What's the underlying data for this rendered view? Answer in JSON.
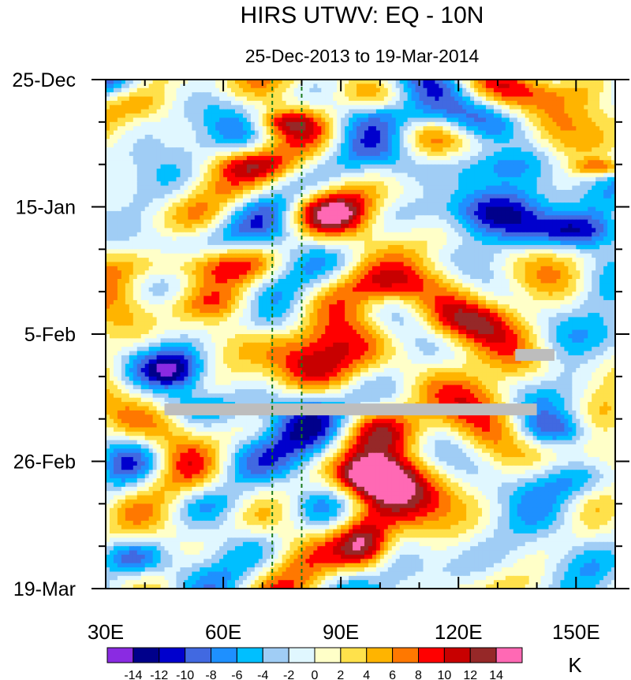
{
  "chart_data": {
    "type": "heatmap",
    "title": "HIRS UTWV: EQ - 10N",
    "subtitle": "25-Dec-2013 to 19-Mar-2014",
    "x_axis": {
      "range": [
        30,
        160
      ],
      "ticks": [
        30,
        60,
        90,
        120,
        150
      ],
      "tick_labels": [
        "30E",
        "60E",
        "90E",
        "120E",
        "150E"
      ]
    },
    "y_axis": {
      "range_days": [
        0,
        84
      ],
      "ticks": [
        0,
        21,
        42,
        63,
        84
      ],
      "tick_labels": [
        "25-Dec",
        "15-Jan",
        "5-Feb",
        "26-Feb",
        "19-Mar"
      ],
      "direction": "time increases downward"
    },
    "reference_lines_lon": [
      72.5,
      80
    ],
    "missing_data_bars": [
      {
        "lon": [
          45,
          140
        ],
        "day": 54.5
      },
      {
        "lon": [
          134.5,
          144.5
        ],
        "day": 45.5
      }
    ],
    "colorbar": {
      "unit_label": "K",
      "levels": [
        -14,
        -12,
        -10,
        -8,
        -6,
        -4,
        -2,
        0,
        2,
        4,
        6,
        8,
        10,
        12,
        14
      ],
      "tick_labels": [
        "-14",
        "-12",
        "-10",
        "-8",
        "-6",
        "-4",
        "-2",
        "0",
        "2",
        "4",
        "6",
        "8",
        "10",
        "12",
        "14"
      ],
      "colors": [
        "#8a2be2",
        "#00008b",
        "#0000cd",
        "#4169e1",
        "#1e90ff",
        "#00bfff",
        "#a0cdf5",
        "#e0f7ff",
        "#ffffc8",
        "#ffe14b",
        "#ffb400",
        "#ff7800",
        "#ff0000",
        "#c80000",
        "#962828",
        "#ff69b4"
      ]
    },
    "features": [
      {
        "lon": 88,
        "day": 46,
        "amp": 9,
        "sLon": 14,
        "sDay": 4
      },
      {
        "lon": 100,
        "day": 34,
        "amp": 10,
        "sLon": 9,
        "sDay": 2.5
      },
      {
        "lon": 98,
        "day": 65.5,
        "amp": 15,
        "sLon": 6,
        "sDay": 2.2
      },
      {
        "lon": 96,
        "day": 77,
        "amp": 15,
        "sLon": 5,
        "sDay": 3
      },
      {
        "lon": 107,
        "day": 68,
        "amp": 8,
        "sLon": 12,
        "sDay": 4
      },
      {
        "lon": 104,
        "day": 58,
        "amp": 6,
        "sLon": 10,
        "sDay": 3
      },
      {
        "lon": 122,
        "day": 40,
        "amp": 7,
        "sLon": 10,
        "sDay": 2.5
      },
      {
        "lon": 155,
        "day": 47,
        "amp": 8,
        "sLon": 6,
        "sDay": 3
      },
      {
        "lon": 50,
        "day": 31,
        "amp": 7,
        "sLon": 12,
        "sDay": 2
      },
      {
        "lon": 62,
        "day": 37,
        "amp": 5,
        "sLon": 10,
        "sDay": 2
      },
      {
        "lon": 75,
        "day": 7,
        "amp": 8,
        "sLon": 6,
        "sDay": 1.5
      },
      {
        "lon": 37,
        "day": 4,
        "amp": 6,
        "sLon": 6,
        "sDay": 2
      },
      {
        "lon": 140,
        "day": 2,
        "amp": 5,
        "sLon": 10,
        "sDay": 2
      },
      {
        "lon": 157,
        "day": 14.5,
        "amp": 9,
        "sLon": 5,
        "sDay": 1
      },
      {
        "lon": 130,
        "day": 11,
        "amp": 5,
        "sLon": 6,
        "sDay": 2
      },
      {
        "lon": 88,
        "day": 22,
        "amp": 7,
        "sLon": 7,
        "sDay": 2
      },
      {
        "lon": 68,
        "day": 14,
        "amp": 5,
        "sLon": 8,
        "sDay": 1.5
      },
      {
        "lon": 48,
        "day": 48,
        "amp": -13,
        "sLon": 6,
        "sDay": 2.5
      },
      {
        "lon": 58,
        "day": 54,
        "amp": -5,
        "sLon": 14,
        "sDay": 2
      },
      {
        "lon": 150,
        "day": 25,
        "amp": -10,
        "sLon": 8,
        "sDay": 2
      },
      {
        "lon": 125,
        "day": 14,
        "amp": -7,
        "sLon": 14,
        "sDay": 2.5
      },
      {
        "lon": 105,
        "day": 6,
        "amp": -7,
        "sLon": 12,
        "sDay": 2
      },
      {
        "lon": 150,
        "day": 66,
        "amp": -8,
        "sLon": 9,
        "sDay": 2.5
      },
      {
        "lon": 146,
        "day": 58,
        "amp": -7,
        "sLon": 8,
        "sDay": 2
      },
      {
        "lon": 120,
        "day": 22,
        "amp": -7,
        "sLon": 12,
        "sDay": 2.5
      },
      {
        "lon": 36,
        "day": 79,
        "amp": -8,
        "sLon": 6,
        "sDay": 2
      },
      {
        "lon": 142,
        "day": 80,
        "amp": -6,
        "sLon": 12,
        "sDay": 3
      },
      {
        "lon": 58,
        "day": 26,
        "amp": -4,
        "sLon": 14,
        "sDay": 2
      },
      {
        "lon": 40,
        "day": 62,
        "amp": -5,
        "sLon": 6,
        "sDay": 3
      },
      {
        "lon": 65,
        "day": 70,
        "amp": -3,
        "sLon": 14,
        "sDay": 2
      }
    ]
  }
}
